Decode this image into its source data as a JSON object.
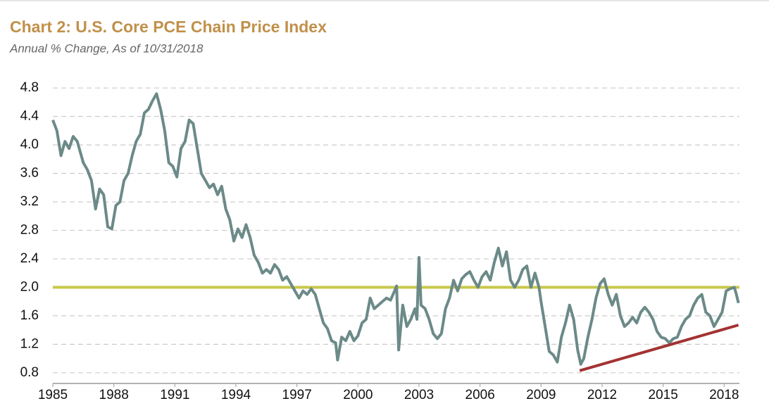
{
  "chart_data": {
    "type": "line",
    "title": "Chart 2: U.S. Core PCE Chain Price Index",
    "subtitle": "Annual % Change, As of 10/31/2018",
    "x": [
      1985.0,
      1985.2,
      1985.4,
      1985.6,
      1985.8,
      1986.0,
      1986.2,
      1986.5,
      1986.7,
      1986.9,
      1987.1,
      1987.3,
      1987.5,
      1987.7,
      1987.9,
      1988.1,
      1988.3,
      1988.5,
      1988.7,
      1988.9,
      1989.1,
      1989.3,
      1989.5,
      1989.7,
      1989.9,
      1990.1,
      1990.3,
      1990.5,
      1990.7,
      1990.9,
      1991.1,
      1991.3,
      1991.5,
      1991.7,
      1991.9,
      1992.1,
      1992.3,
      1992.5,
      1992.7,
      1992.9,
      1993.1,
      1993.3,
      1993.5,
      1993.7,
      1993.9,
      1994.1,
      1994.3,
      1994.5,
      1994.7,
      1994.9,
      1995.1,
      1995.3,
      1995.5,
      1995.7,
      1995.9,
      1996.1,
      1996.3,
      1996.5,
      1996.7,
      1996.9,
      1997.1,
      1997.3,
      1997.5,
      1997.7,
      1997.9,
      1998.1,
      1998.3,
      1998.5,
      1998.7,
      1998.9,
      1999.0,
      1999.2,
      1999.4,
      1999.6,
      1999.8,
      2000.0,
      2000.2,
      2000.4,
      2000.6,
      2000.8,
      2001.0,
      2001.2,
      2001.4,
      2001.6,
      2001.8,
      2001.9,
      2002.0,
      2002.2,
      2002.4,
      2002.6,
      2002.8,
      2002.9,
      2003.0,
      2003.1,
      2003.3,
      2003.5,
      2003.7,
      2003.9,
      2004.1,
      2004.3,
      2004.5,
      2004.7,
      2004.9,
      2005.1,
      2005.3,
      2005.5,
      2005.7,
      2005.9,
      2006.1,
      2006.3,
      2006.5,
      2006.7,
      2006.9,
      2007.1,
      2007.3,
      2007.5,
      2007.7,
      2007.9,
      2008.1,
      2008.3,
      2008.5,
      2008.7,
      2008.9,
      2009.0,
      2009.2,
      2009.4,
      2009.6,
      2009.8,
      2010.0,
      2010.2,
      2010.4,
      2010.6,
      2010.8,
      2010.95,
      2011.1,
      2011.3,
      2011.5,
      2011.7,
      2011.9,
      2012.1,
      2012.3,
      2012.5,
      2012.7,
      2012.9,
      2013.1,
      2013.3,
      2013.5,
      2013.7,
      2013.9,
      2014.1,
      2014.3,
      2014.5,
      2014.7,
      2014.9,
      2015.1,
      2015.3,
      2015.5,
      2015.7,
      2015.9,
      2016.1,
      2016.3,
      2016.5,
      2016.7,
      2016.9,
      2017.1,
      2017.3,
      2017.5,
      2017.7,
      2017.9,
      2018.1,
      2018.3,
      2018.5,
      2018.6,
      2018.7
    ],
    "series": [
      {
        "color": "#6b8a88",
        "values": [
          4.35,
          4.2,
          3.85,
          4.05,
          3.95,
          4.12,
          4.05,
          3.75,
          3.65,
          3.5,
          3.1,
          3.38,
          3.3,
          2.85,
          2.82,
          3.15,
          3.2,
          3.5,
          3.6,
          3.85,
          4.05,
          4.15,
          4.45,
          4.5,
          4.62,
          4.72,
          4.5,
          4.2,
          3.75,
          3.7,
          3.55,
          3.95,
          4.05,
          4.35,
          4.3,
          3.95,
          3.6,
          3.5,
          3.4,
          3.45,
          3.3,
          3.42,
          3.1,
          2.95,
          2.65,
          2.82,
          2.7,
          2.88,
          2.7,
          2.45,
          2.35,
          2.2,
          2.25,
          2.2,
          2.32,
          2.25,
          2.1,
          2.15,
          2.05,
          1.95,
          1.85,
          1.95,
          1.9,
          1.98,
          1.9,
          1.7,
          1.5,
          1.42,
          1.25,
          1.22,
          0.98,
          1.3,
          1.25,
          1.38,
          1.25,
          1.32,
          1.5,
          1.55,
          1.85,
          1.7,
          1.75,
          1.8,
          1.85,
          1.82,
          1.95,
          2.02,
          1.12,
          1.75,
          1.45,
          1.55,
          1.7,
          1.55,
          2.42,
          1.75,
          1.7,
          1.55,
          1.35,
          1.28,
          1.35,
          1.7,
          1.85,
          2.1,
          1.95,
          2.12,
          2.18,
          2.22,
          2.1,
          2.0,
          2.15,
          2.22,
          2.1,
          2.35,
          2.55,
          2.3,
          2.5,
          2.1,
          2.0,
          2.1,
          2.25,
          2.3,
          2.0,
          2.2,
          2.0,
          1.8,
          1.45,
          1.1,
          1.05,
          0.95,
          1.3,
          1.5,
          1.75,
          1.55,
          1.12,
          0.92,
          1.0,
          1.3,
          1.55,
          1.85,
          2.05,
          2.12,
          1.9,
          1.75,
          1.9,
          1.6,
          1.45,
          1.5,
          1.58,
          1.5,
          1.65,
          1.72,
          1.65,
          1.55,
          1.38,
          1.3,
          1.28,
          1.22,
          1.28,
          1.3,
          1.45,
          1.55,
          1.6,
          1.75,
          1.85,
          1.9,
          1.65,
          1.6,
          1.45,
          1.55,
          1.65,
          1.95,
          1.98,
          2.0,
          1.9,
          1.78
        ]
      }
    ],
    "reference_line": {
      "value": 2.0,
      "color": "#c8c84a"
    },
    "trend_line": {
      "x": [
        2010.9,
        2018.7
      ],
      "values": [
        0.83,
        1.47
      ],
      "color": "#a33333"
    },
    "xlim": [
      1985,
      2018.75
    ],
    "xticks": [
      1985,
      1988,
      1991,
      1994,
      1997,
      2000,
      2003,
      2006,
      2009,
      2012,
      2015,
      2018
    ],
    "ylim": [
      0.65,
      4.85
    ],
    "yticks": [
      {
        "value": 0.8,
        "label": "0.8"
      },
      {
        "value": 1.2,
        "label": "1.2"
      },
      {
        "value": 1.6,
        "label": "1.6"
      },
      {
        "value": 2.0,
        "label": "2.0"
      },
      {
        "value": 2.4,
        "label": "2.4"
      },
      {
        "value": 2.8,
        "label": "2.8"
      },
      {
        "value": 3.2,
        "label": "3.2"
      },
      {
        "value": 3.6,
        "label": "3.6"
      },
      {
        "value": 4.0,
        "label": "4.0"
      },
      {
        "value": 4.4,
        "label": "4.4"
      },
      {
        "value": 4.8,
        "label": "4.8"
      }
    ],
    "grid": true
  }
}
